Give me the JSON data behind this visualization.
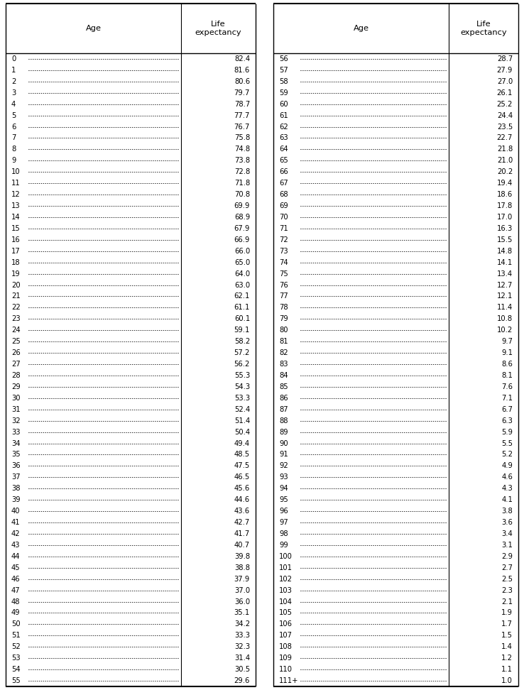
{
  "left_ages": [
    "0",
    "1",
    "2",
    "3",
    "4",
    "5",
    "6",
    "7",
    "8",
    "9",
    "10",
    "11",
    "12",
    "13",
    "14",
    "15",
    "16",
    "17",
    "18",
    "19",
    "20",
    "21",
    "22",
    "23",
    "24",
    "25",
    "26",
    "27",
    "28",
    "29",
    "30",
    "31",
    "32",
    "33",
    "34",
    "35",
    "36",
    "37",
    "38",
    "39",
    "40",
    "41",
    "42",
    "43",
    "44",
    "45",
    "46",
    "47",
    "48",
    "49",
    "50",
    "51",
    "52",
    "53",
    "54",
    "55"
  ],
  "left_le": [
    82.4,
    81.6,
    80.6,
    79.7,
    78.7,
    77.7,
    76.7,
    75.8,
    74.8,
    73.8,
    72.8,
    71.8,
    70.8,
    69.9,
    68.9,
    67.9,
    66.9,
    66.0,
    65.0,
    64.0,
    63.0,
    62.1,
    61.1,
    60.1,
    59.1,
    58.2,
    57.2,
    56.2,
    55.3,
    54.3,
    53.3,
    52.4,
    51.4,
    50.4,
    49.4,
    48.5,
    47.5,
    46.5,
    45.6,
    44.6,
    43.6,
    42.7,
    41.7,
    40.7,
    39.8,
    38.8,
    37.9,
    37.0,
    36.0,
    35.1,
    34.2,
    33.3,
    32.3,
    31.4,
    30.5,
    29.6
  ],
  "right_ages": [
    "56",
    "57",
    "58",
    "59",
    "60",
    "61",
    "62",
    "63",
    "64",
    "65",
    "66",
    "67",
    "68",
    "69",
    "70",
    "71",
    "72",
    "73",
    "74",
    "75",
    "76",
    "77",
    "78",
    "79",
    "80",
    "81",
    "82",
    "83",
    "84",
    "85",
    "86",
    "87",
    "88",
    "89",
    "90",
    "91",
    "92",
    "93",
    "94",
    "95",
    "96",
    "97",
    "98",
    "99",
    "100",
    "101",
    "102",
    "103",
    "104",
    "105",
    "106",
    "107",
    "108",
    "109",
    "110",
    "111+"
  ],
  "right_le": [
    28.7,
    27.9,
    27.0,
    26.1,
    25.2,
    24.4,
    23.5,
    22.7,
    21.8,
    21.0,
    20.2,
    19.4,
    18.6,
    17.8,
    17.0,
    16.3,
    15.5,
    14.8,
    14.1,
    13.4,
    12.7,
    12.1,
    11.4,
    10.8,
    10.2,
    9.7,
    9.1,
    8.6,
    8.1,
    7.6,
    7.1,
    6.7,
    6.3,
    5.9,
    5.5,
    5.2,
    4.9,
    4.6,
    4.3,
    4.1,
    3.8,
    3.6,
    3.4,
    3.1,
    2.9,
    2.7,
    2.5,
    2.3,
    2.1,
    1.9,
    1.7,
    1.5,
    1.4,
    1.2,
    1.1,
    1.0
  ],
  "col_header_age": "Age",
  "col_header_le": "Life\nexpectancy",
  "bg_color": "#ffffff",
  "text_color": "#000000",
  "line_color": "#000000",
  "font_size": 7.2,
  "header_font_size": 8.2
}
